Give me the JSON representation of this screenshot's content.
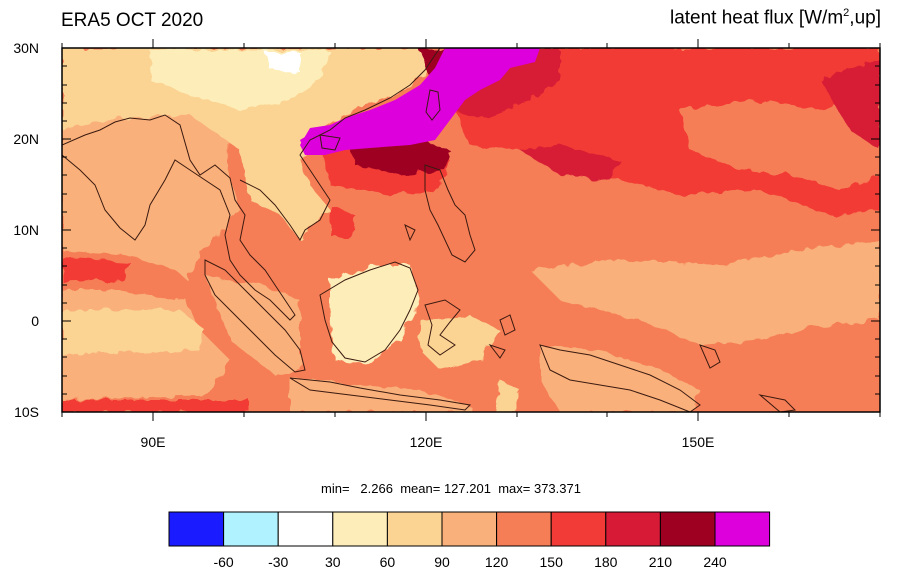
{
  "title_left": "ERA5 OCT 2020",
  "title_right": {
    "prefix": "latent heat flux [W/m",
    "sup": "2",
    "suffix": ",up]"
  },
  "y_axis_labels": [
    "30N",
    "20N",
    "10N",
    "0",
    "10S"
  ],
  "x_axis_labels": [
    "90E",
    "120E",
    "150E"
  ],
  "stats": {
    "min_label": "min=",
    "min_value": "2.266",
    "mean_label": "mean=",
    "mean_value": "127.201",
    "max_label": "max=",
    "max_value": "373.371"
  },
  "colorbar": {
    "colors": [
      "#1b1bff",
      "#b0f2ff",
      "#ffffff",
      "#fdedb8",
      "#fbd494",
      "#f9b07a",
      "#f67e56",
      "#f23a36",
      "#d71a36",
      "#9e0022",
      "#dd00dd"
    ],
    "labels": [
      "-60",
      "-30",
      "30",
      "60",
      "90",
      "120",
      "150",
      "180",
      "210",
      "240"
    ]
  },
  "map": {
    "lon_range": [
      80,
      170
    ],
    "lat_range": [
      -10,
      30
    ]
  }
}
